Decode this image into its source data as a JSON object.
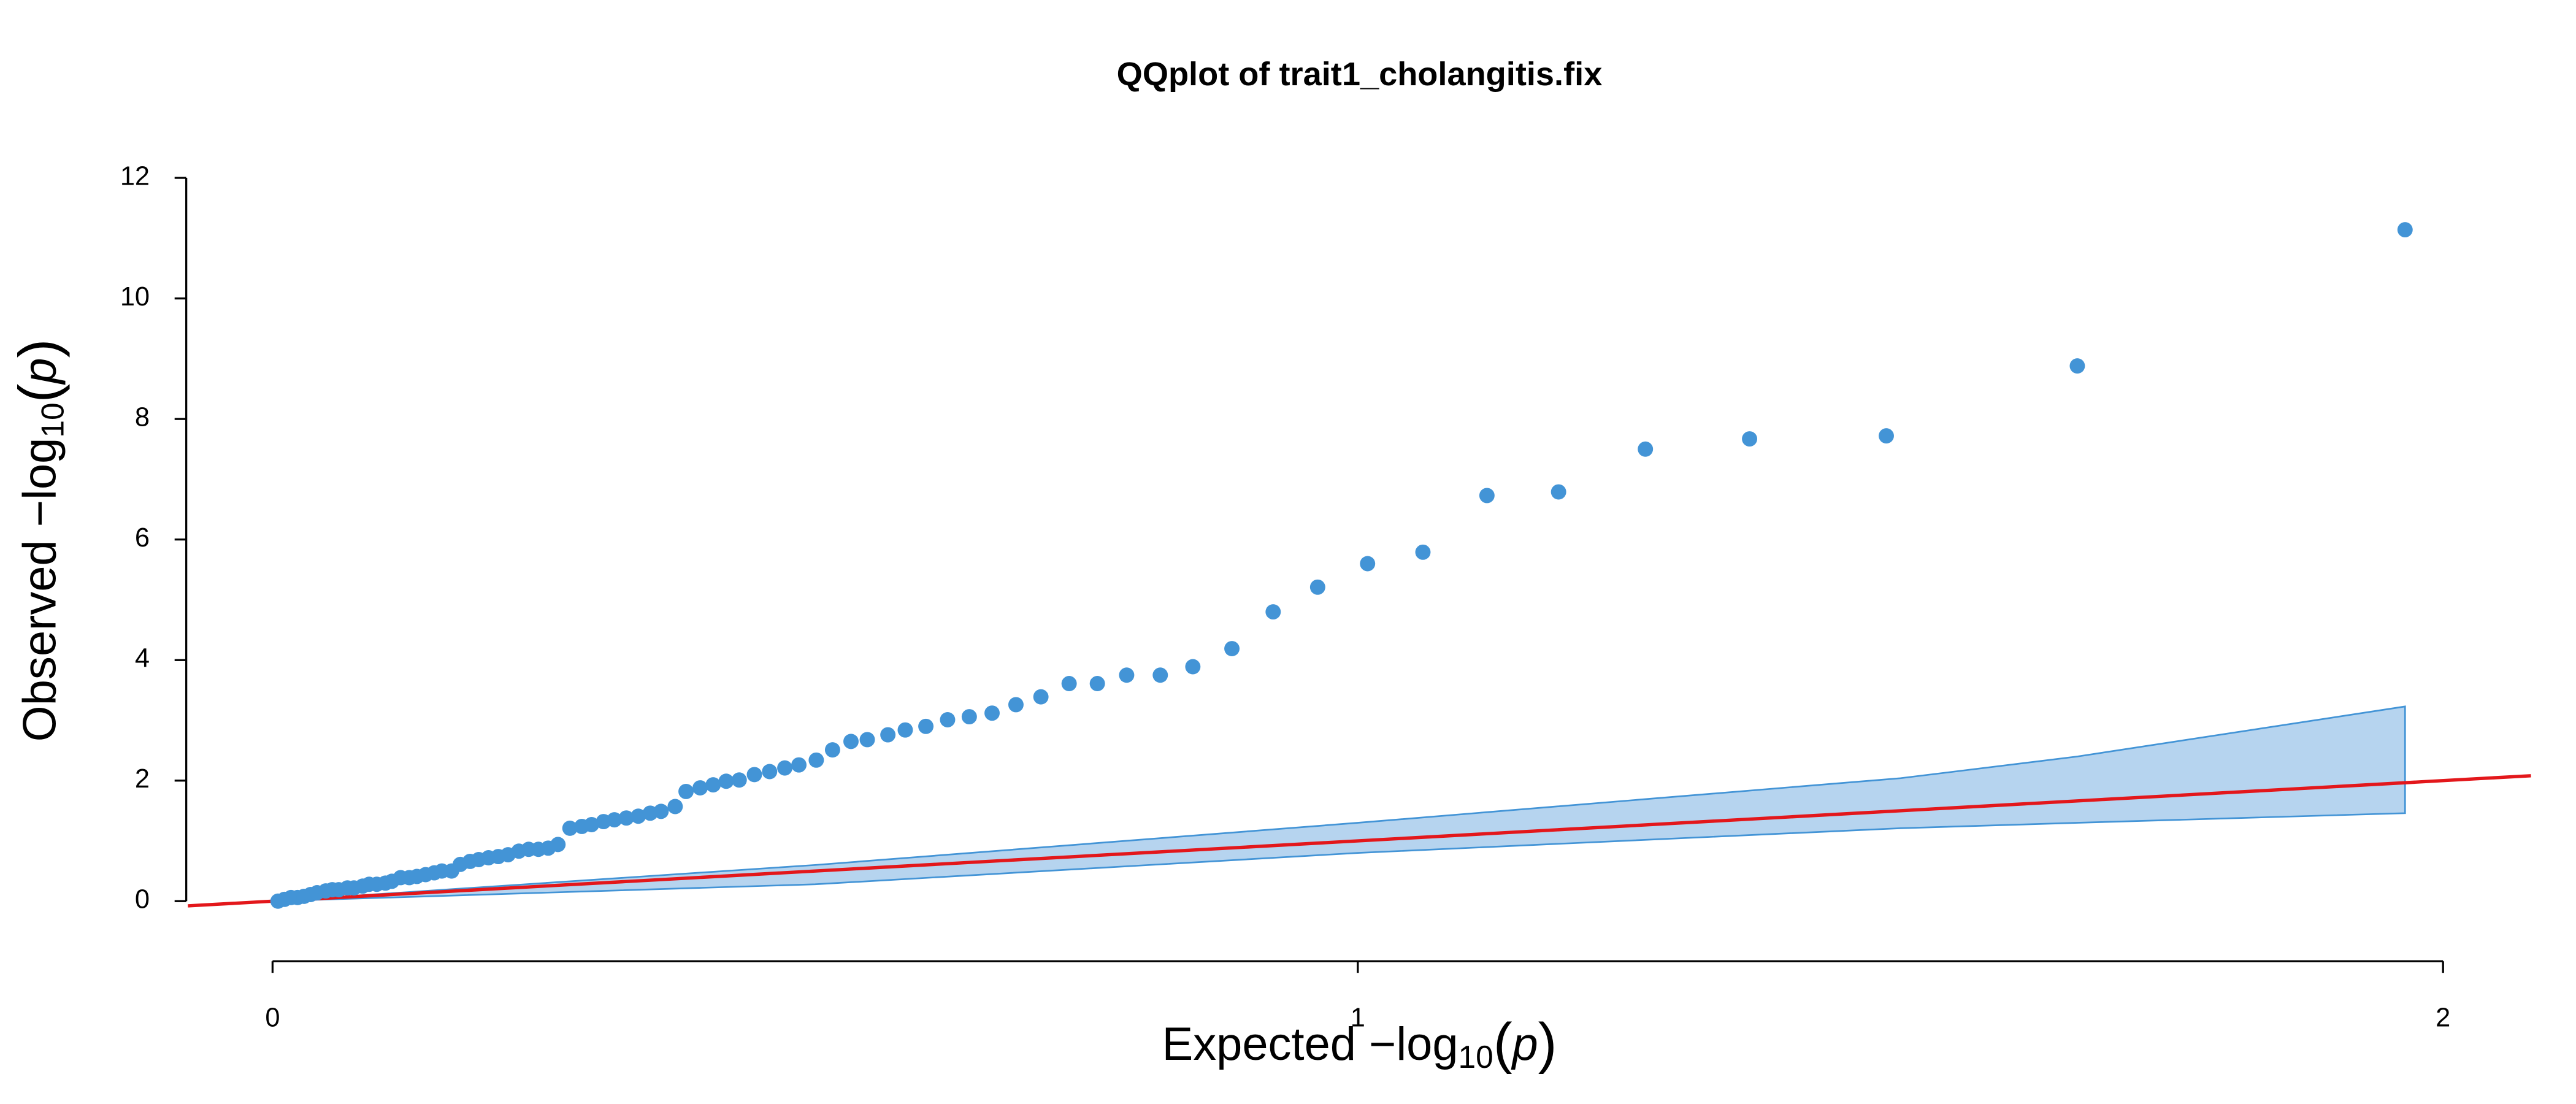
{
  "chart_data": {
    "type": "scatter",
    "title": "QQplot of trait1_cholangitis.fix",
    "xlabel": [
      "Expected  −log",
      "10",
      "(",
      "p",
      ")"
    ],
    "ylabel": [
      "Observed  −log",
      "10",
      "(",
      "p",
      ")"
    ],
    "xlim": [
      -0.078,
      2.081
    ],
    "ylim": [
      -0.5,
      12.4
    ],
    "xticks": [
      0,
      1,
      2
    ],
    "yticks": [
      0,
      2,
      4,
      6,
      8,
      10,
      12
    ],
    "color": "#4394d6",
    "x": [
      0.005,
      0.011,
      0.017,
      0.023,
      0.029,
      0.035,
      0.041,
      0.049,
      0.055,
      0.061,
      0.069,
      0.075,
      0.083,
      0.089,
      0.096,
      0.104,
      0.11,
      0.118,
      0.126,
      0.133,
      0.141,
      0.149,
      0.156,
      0.165,
      0.173,
      0.182,
      0.19,
      0.199,
      0.208,
      0.217,
      0.227,
      0.236,
      0.245,
      0.254,
      0.263,
      0.274,
      0.285,
      0.294,
      0.305,
      0.315,
      0.326,
      0.337,
      0.348,
      0.358,
      0.371,
      0.381,
      0.394,
      0.406,
      0.418,
      0.43,
      0.444,
      0.458,
      0.472,
      0.485,
      0.501,
      0.516,
      0.533,
      0.548,
      0.567,
      0.583,
      0.602,
      0.622,
      0.642,
      0.663,
      0.685,
      0.708,
      0.734,
      0.76,
      0.787,
      0.818,
      0.848,
      0.884,
      0.922,
      0.963,
      1.009,
      1.06,
      1.119,
      1.185,
      1.265,
      1.361,
      1.487,
      1.663,
      1.965
    ],
    "values": [
      0.0,
      0.03,
      0.06,
      0.06,
      0.08,
      0.11,
      0.14,
      0.17,
      0.19,
      0.19,
      0.22,
      0.22,
      0.25,
      0.28,
      0.28,
      0.3,
      0.33,
      0.39,
      0.39,
      0.41,
      0.44,
      0.47,
      0.5,
      0.5,
      0.61,
      0.66,
      0.69,
      0.72,
      0.74,
      0.77,
      0.83,
      0.86,
      0.86,
      0.88,
      0.94,
      1.21,
      1.24,
      1.27,
      1.32,
      1.35,
      1.38,
      1.41,
      1.46,
      1.49,
      1.57,
      1.82,
      1.88,
      1.93,
      1.99,
      2.01,
      2.1,
      2.15,
      2.21,
      2.26,
      2.34,
      2.51,
      2.65,
      2.68,
      2.76,
      2.84,
      2.9,
      3.01,
      3.06,
      3.12,
      3.26,
      3.39,
      3.61,
      3.61,
      3.75,
      3.75,
      3.89,
      4.19,
      4.8,
      5.21,
      5.6,
      5.79,
      6.73,
      6.79,
      7.5,
      7.67,
      7.72,
      8.88,
      11.14
    ],
    "band": {
      "x": [
        0,
        0.5,
        1.0,
        1.5,
        1.663,
        1.965
      ],
      "upper": [
        0,
        0.6,
        1.3,
        2.04,
        2.4,
        3.23
      ],
      "lower": [
        0,
        0.28,
        0.8,
        1.21,
        1.3,
        1.46
      ],
      "fill": "#b6d4ef",
      "stroke": "#4394d6"
    },
    "reference_line": {
      "intercept": 0,
      "slope": 1,
      "color": "#e3171b"
    }
  }
}
